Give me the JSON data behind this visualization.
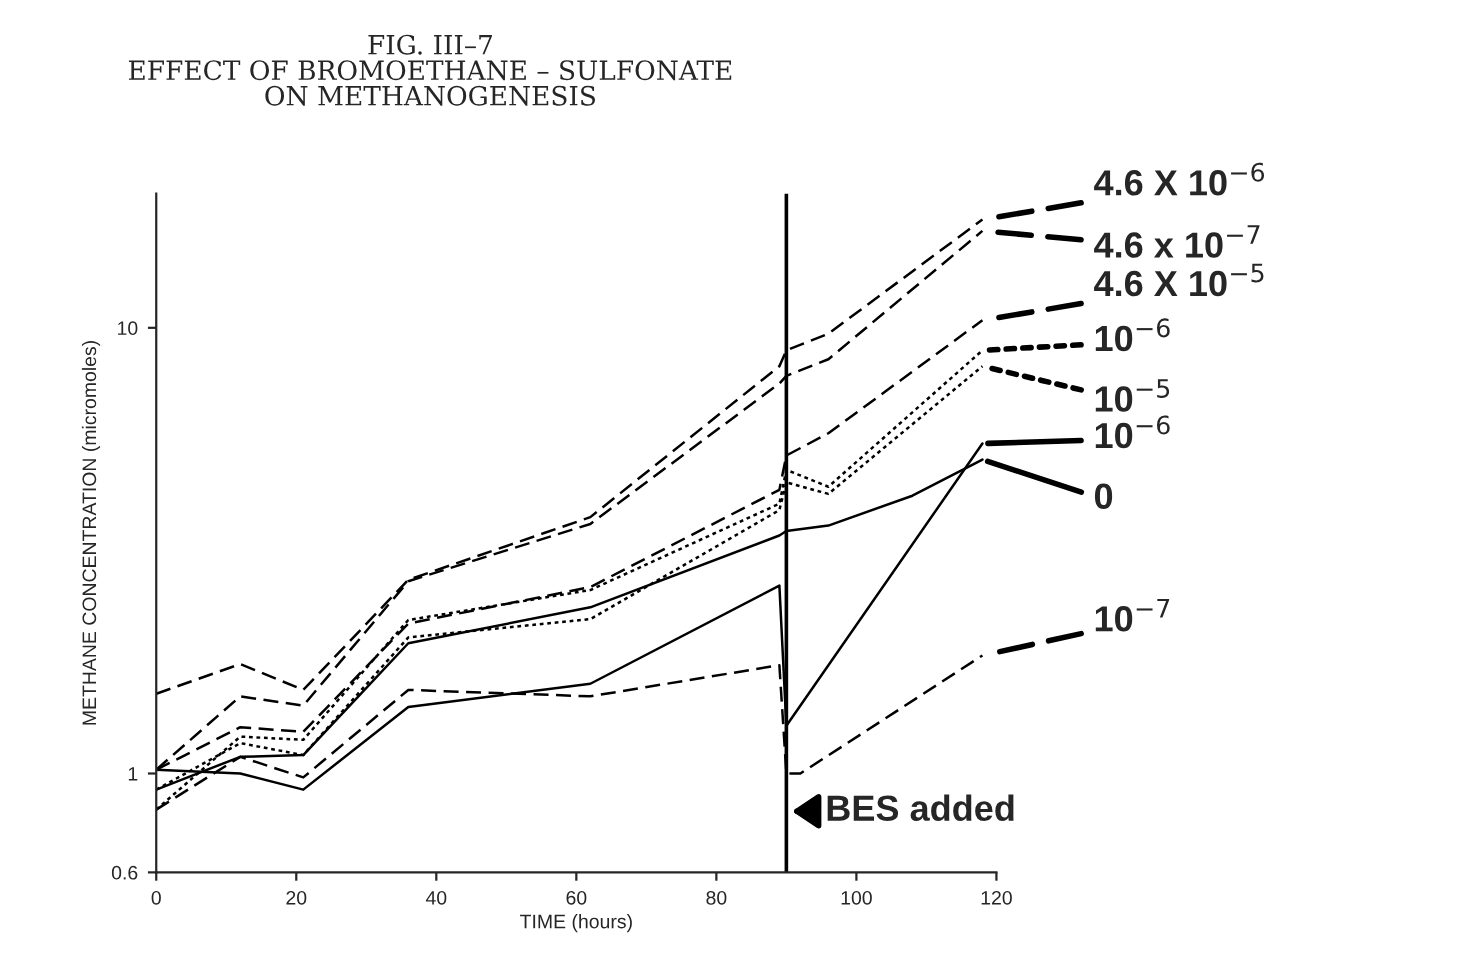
{
  "chart_data": {
    "type": "line",
    "title": "FIG. III–7\nEFFECT OF BROMOETHANE – SULFONATE\nON METHANOGENESIS",
    "xlabel": "TIME (hours)",
    "ylabel": "METHANE CONCENTRATION (micromoles)",
    "xlim": [
      0,
      120
    ],
    "xticks": [
      0,
      20,
      40,
      60,
      80,
      100,
      120
    ],
    "log": "y",
    "ylim": [
      0.6,
      20
    ],
    "yticks": [
      0.6,
      1,
      10
    ],
    "grid": false,
    "legend": "right",
    "marker": "none",
    "ref_lines": [
      {
        "axis": "x",
        "value": 90,
        "label": "BES added",
        "color": "#000000",
        "line_style": "solid"
      }
    ],
    "series": [
      {
        "name": "4.6 X 10$^{−6}$",
        "color": "#000000",
        "line_style": "dashed",
        "x": [
          0,
          12,
          21,
          36,
          62,
          89,
          90,
          96,
          118
        ],
        "values": [
          1.51,
          1.76,
          1.54,
          2.72,
          3.76,
          8.2,
          8.9,
          9.7,
          17.5
        ]
      },
      {
        "name": "4.6 x 10$^{−7}$",
        "color": "#000000",
        "line_style": "dashed",
        "x": [
          0,
          12,
          21,
          36,
          62,
          89,
          90,
          96,
          118
        ],
        "values": [
          1.02,
          1.49,
          1.42,
          2.7,
          3.63,
          7.5,
          7.8,
          8.5,
          16.5
        ]
      },
      {
        "name": "4.6 X 10$^{−5}$",
        "color": "#000000",
        "line_style": "dashed",
        "x": [
          0,
          12,
          21,
          36,
          62,
          89,
          90,
          96,
          118
        ],
        "values": [
          1.02,
          1.27,
          1.24,
          2.17,
          2.62,
          4.33,
          5.17,
          5.8,
          10.4
        ]
      },
      {
        "name": "10$^{−6}$",
        "color": "#000000",
        "line_style": "dotted",
        "x": [
          0,
          12,
          21,
          36,
          62,
          89,
          90,
          96,
          118
        ],
        "values": [
          0.83,
          1.21,
          1.19,
          2.21,
          2.58,
          4.03,
          4.8,
          4.4,
          8.9
        ]
      },
      {
        "name": "10$^{−5}$",
        "color": "#000000",
        "line_style": "dotted",
        "x": [
          0,
          12,
          21,
          36,
          62,
          89,
          90,
          96,
          118
        ],
        "values": [
          0.92,
          1.17,
          1.1,
          2.02,
          2.22,
          3.9,
          4.5,
          4.24,
          8.2
        ]
      },
      {
        "name": "10$^{−6}$",
        "color": "#000000",
        "line_style": "solid",
        "x": [
          0,
          12,
          21,
          36,
          62,
          89,
          90,
          118
        ],
        "values": [
          1.02,
          1.0,
          0.92,
          1.41,
          1.59,
          2.64,
          1.28,
          5.5
        ]
      },
      {
        "name": "0",
        "color": "#000000",
        "line_style": "solid",
        "x": [
          0,
          12,
          21,
          36,
          62,
          89,
          90,
          96,
          108,
          118
        ],
        "values": [
          0.92,
          1.09,
          1.1,
          1.96,
          2.36,
          3.42,
          3.5,
          3.6,
          4.2,
          5.06
        ]
      },
      {
        "name": "10$^{−7}$",
        "color": "#000000",
        "line_style": "dashed",
        "x": [
          0,
          12,
          21,
          36,
          62,
          89,
          90,
          92,
          118
        ],
        "values": [
          0.83,
          1.09,
          0.98,
          1.54,
          1.49,
          1.75,
          1.0,
          1.0,
          1.84
        ]
      }
    ]
  }
}
